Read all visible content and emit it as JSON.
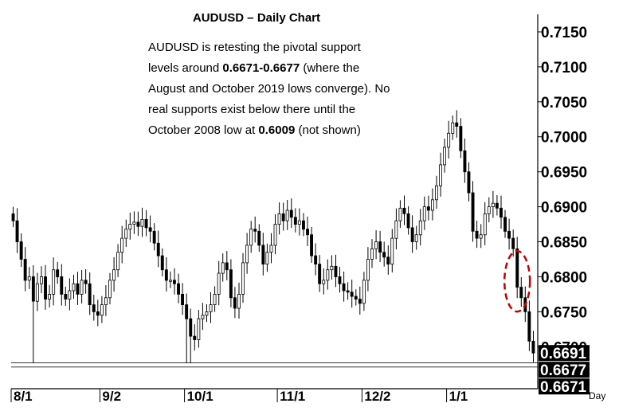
{
  "chart_data": {
    "type": "candlestick",
    "title": "AUDUSD – Daily Chart",
    "annotation": {
      "lines": [
        [
          {
            "t": "AUDUSD is retesting the pivotal support",
            "b": false
          }
        ],
        [
          {
            "t": "levels around ",
            "b": false
          },
          {
            "t": "0.6671-0.6677",
            "b": true
          },
          {
            "t": " (where the",
            "b": false
          }
        ],
        [
          {
            "t": "August and October 2019 lows converge). No",
            "b": false
          }
        ],
        [
          {
            "t": "real supports exist below there until the",
            "b": false
          }
        ],
        [
          {
            "t": "October 2008 low at ",
            "b": false
          },
          {
            "t": "0.6009",
            "b": true
          },
          {
            "t": " (not shown)",
            "b": false
          }
        ]
      ]
    },
    "x_unit_label": "Day",
    "x_tick_labels": [
      {
        "label": "8/1",
        "index": 0
      },
      {
        "label": "9/2",
        "index": 22
      },
      {
        "label": "10/1",
        "index": 43
      },
      {
        "label": "11/1",
        "index": 66
      },
      {
        "label": "12/2",
        "index": 87
      },
      {
        "label": "1/1",
        "index": 108
      }
    ],
    "y_ticks": [
      0.715,
      0.71,
      0.705,
      0.7,
      0.695,
      0.69,
      0.685,
      0.68,
      0.675,
      0.67
    ],
    "y_tick_labels": [
      "0.7150",
      "0.7100",
      "0.7050",
      "0.7000",
      "0.6950",
      "0.6900",
      "0.6850",
      "0.6800",
      "0.6750",
      "0.6700"
    ],
    "ylim": [
      0.664,
      0.7175
    ],
    "support_levels": [
      0.6677,
      0.6671
    ],
    "price_labels": [
      {
        "label": "0.6691",
        "value": 0.6691
      },
      {
        "label": "0.6677",
        "value": 0.6677
      },
      {
        "label": "0.6671",
        "value": 0.6671
      }
    ],
    "highlight": {
      "shape": "dashed-ellipse",
      "color": "#c00000",
      "from_index": 123,
      "to_index": 127
    },
    "up_color": "#ffffff",
    "down_color": "#000000",
    "closes": [
      0.688,
      0.685,
      0.6825,
      0.6795,
      0.68,
      0.6765,
      0.679,
      0.68,
      0.6768,
      0.6775,
      0.681,
      0.68,
      0.6775,
      0.6768,
      0.678,
      0.679,
      0.6775,
      0.6795,
      0.679,
      0.676,
      0.675,
      0.6745,
      0.676,
      0.677,
      0.6795,
      0.681,
      0.6835,
      0.6855,
      0.6868,
      0.6875,
      0.6878,
      0.6872,
      0.6882,
      0.687,
      0.6865,
      0.6848,
      0.683,
      0.681,
      0.6795,
      0.6795,
      0.679,
      0.6775,
      0.676,
      0.674,
      0.6715,
      0.671,
      0.674,
      0.6745,
      0.675,
      0.676,
      0.6775,
      0.6805,
      0.682,
      0.681,
      0.677,
      0.6755,
      0.6775,
      0.682,
      0.6845,
      0.6868,
      0.6865,
      0.6845,
      0.6818,
      0.6835,
      0.6845,
      0.6875,
      0.689,
      0.688,
      0.6895,
      0.6885,
      0.6875,
      0.688,
      0.6868,
      0.686,
      0.683,
      0.6818,
      0.679,
      0.6795,
      0.681,
      0.6815,
      0.68,
      0.679,
      0.678,
      0.6778,
      0.6772,
      0.6768,
      0.6762,
      0.6795,
      0.6825,
      0.684,
      0.685,
      0.6835,
      0.6828,
      0.6818,
      0.6855,
      0.688,
      0.6898,
      0.689,
      0.687,
      0.685,
      0.686,
      0.688,
      0.69,
      0.6895,
      0.691,
      0.693,
      0.696,
      0.6985,
      0.7005,
      0.702,
      0.7015,
      0.698,
      0.695,
      0.692,
      0.6865,
      0.6855,
      0.686,
      0.689,
      0.69,
      0.6905,
      0.6898,
      0.6885,
      0.6865,
      0.6855,
      0.684,
      0.6785,
      0.677,
      0.675,
      0.6708,
      0.6691
    ]
  }
}
